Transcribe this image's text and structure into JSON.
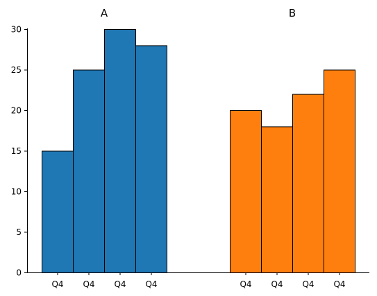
{
  "chart_data": {
    "type": "bar",
    "ylim": [
      0,
      30
    ],
    "y_ticks": [
      0,
      5,
      10,
      15,
      20,
      25,
      30
    ],
    "grid": false,
    "groups": [
      {
        "title": "A",
        "color": "#1f77b4",
        "categories": [
          "Q4",
          "Q4",
          "Q4",
          "Q4"
        ],
        "values": [
          15,
          25,
          30,
          28
        ]
      },
      {
        "title": "B",
        "color": "#ff7f0e",
        "categories": [
          "Q4",
          "Q4",
          "Q4",
          "Q4"
        ],
        "values": [
          20,
          18,
          22,
          25
        ]
      }
    ]
  }
}
